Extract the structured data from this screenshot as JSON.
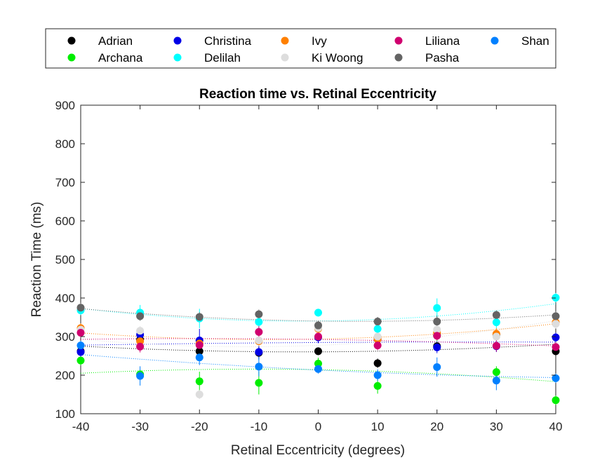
{
  "chart_data": {
    "type": "scatter",
    "title": "Reaction time vs. Retinal Eccentricity",
    "xlabel": "Retinal Eccentricity (degrees)",
    "ylabel": "Reaction Time (ms)",
    "xlim": [
      -40,
      40
    ],
    "ylim": [
      100,
      900
    ],
    "xticks": [
      -40,
      -30,
      -20,
      -10,
      0,
      10,
      20,
      30,
      40
    ],
    "yticks": [
      100,
      200,
      300,
      400,
      500,
      600,
      700,
      800,
      900
    ],
    "x": [
      -40,
      -30,
      -20,
      -10,
      0,
      10,
      20,
      30,
      40
    ],
    "grid": false,
    "legend_position": "top",
    "trendlines": "dotted quadratic fit per series",
    "series": [
      {
        "name": "Adrian",
        "color": "#000000",
        "values": [
          262,
          292,
          262,
          258,
          262,
          231,
          275,
          305,
          262
        ],
        "errors": [
          12,
          12,
          15,
          15,
          10,
          12,
          12,
          12,
          12
        ]
      },
      {
        "name": "Archana",
        "color": "#00ee00",
        "values": [
          238,
          202,
          184,
          180,
          230,
          172,
          303,
          208,
          135
        ],
        "errors": [
          12,
          12,
          25,
          30,
          15,
          20,
          15,
          15,
          12
        ]
      },
      {
        "name": "Christina",
        "color": "#0000e6",
        "values": [
          260,
          305,
          290,
          260,
          298,
          293,
          272,
          275,
          298
        ],
        "errors": [
          12,
          12,
          30,
          20,
          15,
          15,
          15,
          15,
          12
        ]
      },
      {
        "name": "Delilah",
        "color": "#00ffff",
        "values": [
          368,
          362,
          347,
          338,
          362,
          320,
          374,
          337,
          401
        ],
        "errors": [
          12,
          20,
          25,
          20,
          10,
          15,
          25,
          15,
          12
        ]
      },
      {
        "name": "Ivy",
        "color": "#ff8000",
        "values": [
          322,
          288,
          282,
          288,
          320,
          293,
          310,
          307,
          337
        ],
        "errors": [
          12,
          12,
          15,
          12,
          15,
          12,
          12,
          15,
          12
        ]
      },
      {
        "name": "Ki Woong",
        "color": "#dddddd",
        "values": [
          318,
          315,
          150,
          290,
          322,
          300,
          318,
          300,
          333
        ],
        "errors": [
          12,
          12,
          12,
          15,
          15,
          12,
          12,
          15,
          12
        ]
      },
      {
        "name": "Liliana",
        "color": "#d0006f",
        "values": [
          310,
          274,
          278,
          312,
          300,
          277,
          302,
          276,
          273
        ],
        "errors": [
          12,
          15,
          20,
          15,
          12,
          12,
          12,
          15,
          12
        ]
      },
      {
        "name": "Pasha",
        "color": "#646464",
        "values": [
          375,
          353,
          351,
          358,
          329,
          339,
          339,
          356,
          353
        ],
        "errors": [
          12,
          12,
          12,
          12,
          12,
          12,
          15,
          12,
          12
        ]
      },
      {
        "name": "Shan",
        "color": "#0080ff",
        "values": [
          277,
          198,
          246,
          222,
          216,
          200,
          221,
          186,
          192
        ],
        "errors": [
          12,
          25,
          20,
          25,
          12,
          15,
          25,
          25,
          12
        ]
      }
    ]
  }
}
